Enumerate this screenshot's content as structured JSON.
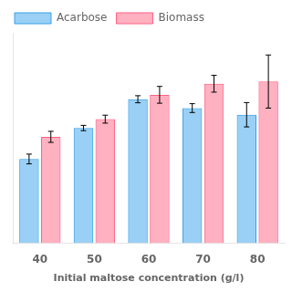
{
  "chart_data": {
    "type": "bar",
    "categories": [
      "40",
      "50",
      "60",
      "70",
      "80"
    ],
    "series": [
      {
        "name": "Acarbose",
        "values": [
          0.38,
          0.52,
          0.65,
          0.61,
          0.58
        ],
        "errors": [
          0.022,
          0.012,
          0.016,
          0.02,
          0.055
        ]
      },
      {
        "name": "Biomass",
        "values": [
          0.48,
          0.56,
          0.67,
          0.72,
          0.73
        ],
        "errors": [
          0.025,
          0.018,
          0.038,
          0.038,
          0.12
        ]
      }
    ],
    "xlabel": "Initial maltose concentration (g/l)",
    "ylim": [
      0,
      0.95
    ],
    "yticks": [],
    "tick_labels": "x",
    "grid": false,
    "legend": "upper left"
  }
}
